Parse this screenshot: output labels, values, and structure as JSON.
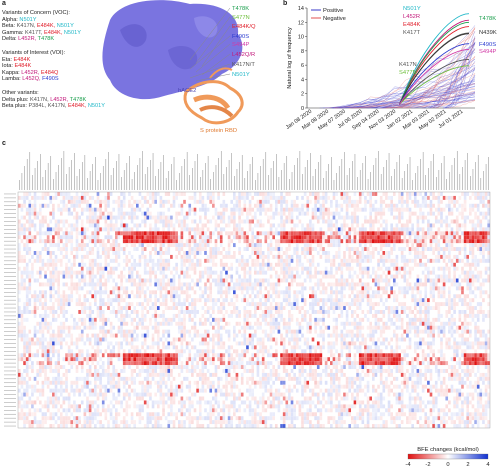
{
  "panel_a": {
    "label": "a",
    "voc": {
      "heading": "Variants of Concern (VOC):",
      "rows": [
        {
          "name": "Alpha:",
          "muts": [
            {
              "t": "N501Y",
              "c": "#20b8c8"
            }
          ]
        },
        {
          "name": "Beta:",
          "muts": [
            {
              "t": "K417N, ",
              "c": "#555555"
            },
            {
              "t": "E484K, ",
              "c": "#e0202c"
            },
            {
              "t": "N501Y",
              "c": "#20b8c8"
            }
          ]
        },
        {
          "name": "Gamma:",
          "muts": [
            {
              "t": "K417T, ",
              "c": "#555555"
            },
            {
              "t": "E484K, ",
              "c": "#e0202c"
            },
            {
              "t": "N501Y",
              "c": "#20b8c8"
            }
          ]
        },
        {
          "name": "Delta:",
          "muts": [
            {
              "t": "L452R, ",
              "c": "#c2187a"
            },
            {
              "t": "T478K",
              "c": "#1a9e4c"
            }
          ]
        }
      ]
    },
    "voi": {
      "heading": "Variants of Interest (VOI):",
      "rows": [
        {
          "name": "Eta:",
          "muts": [
            {
              "t": "E484K",
              "c": "#e0202c"
            }
          ]
        },
        {
          "name": "Iota:",
          "muts": [
            {
              "t": "E484K",
              "c": "#e0202c"
            }
          ]
        },
        {
          "name": "Kappa:",
          "muts": [
            {
              "t": "L452R, ",
              "c": "#c2187a"
            },
            {
              "t": "E484Q",
              "c": "#e0202c"
            }
          ]
        },
        {
          "name": "Lamba:",
          "muts": [
            {
              "t": "L452Q, ",
              "c": "#c2187a"
            },
            {
              "t": "F490S",
              "c": "#2a3bd0"
            }
          ]
        }
      ]
    },
    "other": {
      "heading": "Other variants:",
      "rows": [
        {
          "name": "Delta plus:",
          "muts": [
            {
              "t": "K417N, ",
              "c": "#555555"
            },
            {
              "t": "L452R, ",
              "c": "#c2187a"
            },
            {
              "t": "T478K",
              "c": "#1a9e4c"
            }
          ]
        },
        {
          "name": "Beta plus:",
          "muts": [
            {
              "t": "P384L, ",
              "c": "#555555"
            },
            {
              "t": "K417N, ",
              "c": "#555555"
            },
            {
              "t": "E484K, ",
              "c": "#e0202c"
            },
            {
              "t": "N501Y",
              "c": "#20b8c8"
            }
          ]
        }
      ]
    },
    "structure_labels": [
      {
        "t": "T478K",
        "c": "#1a9e4c"
      },
      {
        "t": "S477N",
        "c": "#6fbf3c"
      },
      {
        "t": "E484K/Q",
        "c": "#e0202c"
      },
      {
        "t": "F490S",
        "c": "#2a3bd0"
      },
      {
        "t": "S494P",
        "c": "#d23aa6"
      },
      {
        "t": "L452Q/R",
        "c": "#c2187a"
      },
      {
        "t": "K417N/T",
        "c": "#555555"
      },
      {
        "t": "N501Y",
        "c": "#20b8c8"
      }
    ],
    "hace2_label": "hACE2",
    "rbd_label": "S protein RBD",
    "colors": {
      "hace2": "#7a74e0",
      "rbd": "#f09a5a"
    }
  },
  "panel_b": {
    "label": "b",
    "legend": {
      "positive": "Positive",
      "negative": "Negative"
    },
    "series_labels": [
      {
        "t": "N501Y",
        "c": "#20b8c8"
      },
      {
        "t": "L452R",
        "c": "#c2187a"
      },
      {
        "t": "E484K",
        "c": "#e0202c"
      },
      {
        "t": "K417T",
        "c": "#555555"
      },
      {
        "t": "K417N",
        "c": "#555555"
      },
      {
        "t": "S477N",
        "c": "#6fbf3c"
      },
      {
        "t": "T478K",
        "c": "#1a9e4c"
      },
      {
        "t": "N439K",
        "c": "#333333"
      },
      {
        "t": "F490S",
        "c": "#2a3bd0"
      },
      {
        "t": "S494P",
        "c": "#d23aa6"
      }
    ]
  },
  "chart_data": [
    {
      "type": "line",
      "ylabel": "Natural log of frequency",
      "ylim": [
        0,
        14
      ],
      "yticks": [
        0,
        2,
        4,
        6,
        8,
        10,
        12,
        14
      ],
      "xticks": [
        "Jan 08 2020",
        "Mar 08 2020",
        "May 07 2020",
        "Jul 06 2020",
        "Sep 04 2020",
        "Nov 03 2020",
        "Jan 02 2021",
        "Mar 03 2021",
        "May 02 2021",
        "Jul 01 2021"
      ],
      "series": [
        {
          "name": "Positive",
          "color": "#3a3ac8"
        },
        {
          "name": "Negative",
          "color": "#e05050"
        }
      ]
    },
    {
      "type": "heatmap",
      "colorbar": {
        "label": "BFE changes (kcal/mol)",
        "ticks": [
          -4,
          -2,
          0,
          2,
          4
        ],
        "range": [
          -4,
          4
        ],
        "low_color": "#e01010",
        "mid_color": "#ffffff",
        "high_color": "#1030d0"
      }
    }
  ],
  "panel_c": {
    "label": "c"
  }
}
